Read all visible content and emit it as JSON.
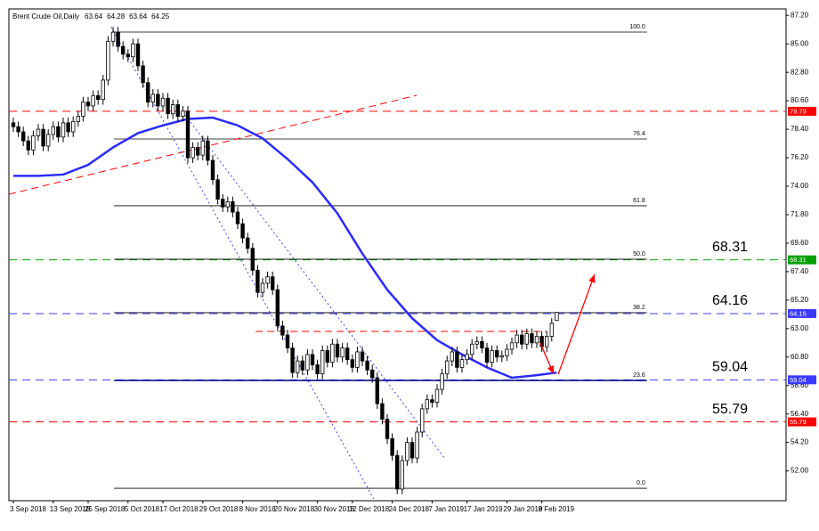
{
  "chart_data": {
    "type": "candlestick",
    "title": "Brent Crude Oil,Daily",
    "categories": [
      "3 Sep 2018",
      null,
      null,
      null,
      null,
      null,
      null,
      null,
      "13 Sep 2018",
      null,
      null,
      null,
      null,
      null,
      null,
      "25 Sep 2018",
      null,
      null,
      null,
      null,
      null,
      null,
      null,
      "5 Oct 2018",
      null,
      null,
      null,
      null,
      null,
      null,
      "17 Oct 2018",
      null,
      null,
      null,
      null,
      null,
      null,
      null,
      "29 Oct 2018",
      null,
      null,
      null,
      null,
      null,
      null,
      null,
      "8 Nov 2018",
      null,
      null,
      null,
      null,
      null,
      null,
      "20 Nov 2018",
      null,
      null,
      null,
      null,
      null,
      null,
      null,
      "30 Nov 2018",
      null,
      null,
      null,
      null,
      null,
      null,
      "12 Dec 2018",
      null,
      null,
      null,
      null,
      null,
      null,
      null,
      "24 Dec 2018",
      null,
      null,
      null,
      null,
      null,
      null,
      null,
      "7 Jan 2019",
      null,
      null,
      null,
      null,
      null,
      null,
      "17 Jan 2019",
      null,
      null,
      null,
      null,
      null,
      null,
      null,
      "29 Jan 2019",
      null,
      null,
      null,
      null,
      null,
      null,
      "8 Feb 2019",
      null,
      null,
      null
    ],
    "open": [
      78.9,
      78.6,
      78.2,
      77.5,
      76.8,
      77.9,
      78.4,
      77.1,
      78.0,
      78.6,
      77.8,
      78.9,
      78.2,
      79.0,
      79.4,
      80.5,
      80.2,
      81.0,
      80.7,
      82.2,
      85.2,
      85.9,
      84.8,
      84.2,
      84.0,
      85.0,
      83.3,
      82.0,
      80.5,
      81.1,
      80.2,
      80.8,
      79.6,
      80.3,
      79.4,
      79.8,
      76.2,
      77.0,
      76.4,
      77.5,
      76.0,
      74.5,
      73.0,
      72.4,
      72.8,
      72.0,
      71.1,
      70.0,
      69.2,
      67.5,
      65.8,
      66.5,
      67.0,
      66.0,
      63.2,
      62.5,
      61.5,
      59.6,
      60.5,
      59.8,
      61.0,
      60.2,
      59.5,
      61.3,
      60.4,
      61.8,
      60.8,
      61.5,
      60.6,
      60.0,
      61.2,
      60.5,
      59.8,
      59.2,
      57.2,
      56.0,
      54.5,
      53.2,
      50.6,
      52.8,
      54.2,
      53.0,
      55.0,
      56.8,
      57.5,
      57.3,
      58.3,
      59.5,
      60.5,
      61.2,
      60.0,
      60.6,
      61.0,
      61.8,
      62.0,
      61.5,
      60.4,
      61.3,
      60.8,
      60.9,
      61.4,
      61.9,
      62.5,
      61.8,
      62.6,
      61.9,
      62.4,
      61.6,
      62.4,
      63.64
    ],
    "high": [
      79.3,
      79.0,
      78.6,
      77.9,
      78.3,
      78.8,
      78.8,
      78.4,
      79.0,
      79.0,
      79.3,
      79.3,
      79.4,
      79.8,
      80.9,
      80.9,
      81.4,
      81.4,
      82.6,
      85.6,
      86.3,
      86.3,
      85.2,
      84.6,
      85.4,
      85.4,
      83.7,
      82.4,
      81.5,
      81.5,
      81.2,
      81.2,
      80.7,
      80.7,
      80.2,
      80.2,
      77.4,
      77.4,
      77.9,
      77.9,
      76.4,
      74.9,
      73.4,
      73.2,
      73.2,
      72.4,
      71.5,
      70.4,
      69.6,
      67.9,
      66.9,
      67.4,
      67.4,
      66.4,
      63.6,
      62.9,
      61.9,
      60.9,
      60.9,
      61.4,
      61.4,
      60.6,
      61.7,
      61.7,
      62.2,
      62.2,
      61.9,
      61.9,
      61.0,
      61.6,
      61.6,
      60.9,
      60.2,
      59.6,
      57.6,
      56.4,
      54.9,
      53.6,
      53.2,
      54.6,
      54.6,
      55.4,
      57.2,
      57.9,
      57.9,
      58.7,
      59.9,
      60.9,
      61.6,
      61.6,
      61.0,
      61.4,
      62.2,
      62.4,
      62.4,
      61.9,
      61.7,
      61.7,
      61.3,
      61.8,
      62.3,
      62.9,
      62.9,
      63.0,
      63.0,
      62.8,
      62.8,
      62.8,
      63.8,
      64.28
    ],
    "low": [
      78.2,
      77.8,
      77.1,
      76.4,
      76.4,
      77.5,
      76.7,
      76.7,
      77.6,
      77.4,
      77.4,
      77.8,
      77.8,
      78.6,
      79.0,
      79.8,
      79.8,
      80.3,
      80.3,
      81.8,
      84.8,
      84.4,
      83.8,
      83.6,
      83.6,
      82.9,
      81.6,
      80.1,
      80.1,
      79.8,
      79.8,
      79.2,
      79.2,
      79.0,
      79.0,
      75.8,
      75.8,
      76.0,
      76.0,
      75.6,
      74.1,
      72.6,
      72.0,
      72.0,
      71.6,
      70.7,
      69.6,
      68.8,
      67.1,
      65.4,
      65.4,
      66.1,
      65.6,
      62.8,
      62.1,
      61.1,
      59.2,
      59.2,
      59.4,
      59.4,
      59.8,
      59.1,
      59.1,
      60.0,
      60.0,
      60.4,
      60.4,
      60.2,
      59.6,
      59.6,
      60.1,
      59.4,
      58.8,
      56.8,
      55.6,
      54.1,
      52.8,
      50.2,
      50.2,
      52.4,
      52.6,
      52.6,
      54.6,
      56.4,
      56.9,
      56.9,
      57.9,
      59.1,
      60.1,
      59.6,
      59.6,
      60.2,
      60.6,
      61.4,
      61.1,
      60.0,
      60.0,
      60.4,
      60.4,
      60.5,
      61.0,
      61.5,
      61.4,
      61.4,
      61.5,
      61.5,
      61.2,
      61.2,
      62.0,
      63.64
    ],
    "close": [
      78.6,
      78.2,
      77.5,
      76.8,
      77.9,
      78.4,
      77.1,
      78.0,
      78.6,
      77.8,
      78.9,
      78.2,
      79.0,
      79.4,
      80.5,
      80.2,
      81.0,
      80.7,
      82.2,
      85.2,
      85.9,
      84.8,
      84.2,
      84.0,
      85.0,
      83.3,
      82.0,
      80.5,
      81.1,
      80.2,
      80.8,
      79.6,
      80.3,
      79.4,
      79.8,
      76.2,
      77.0,
      76.4,
      77.5,
      76.0,
      74.5,
      73.0,
      72.4,
      72.8,
      72.0,
      71.1,
      70.0,
      69.2,
      67.5,
      65.8,
      66.5,
      67.0,
      66.0,
      63.2,
      62.5,
      61.5,
      59.6,
      60.5,
      59.8,
      61.0,
      60.2,
      59.5,
      61.3,
      60.4,
      61.8,
      60.8,
      61.5,
      60.6,
      60.0,
      61.2,
      60.5,
      59.8,
      59.2,
      57.2,
      56.0,
      54.5,
      53.2,
      50.6,
      52.8,
      54.2,
      53.0,
      55.0,
      56.8,
      57.5,
      57.3,
      58.3,
      59.5,
      60.5,
      61.2,
      60.0,
      60.6,
      61.0,
      61.8,
      62.0,
      61.5,
      60.4,
      61.3,
      60.8,
      60.9,
      61.4,
      61.9,
      62.5,
      61.8,
      62.6,
      61.9,
      62.4,
      61.6,
      62.4,
      63.4,
      64.25
    ],
    "ylim": [
      49.7,
      87.7
    ],
    "yticks": [
      {
        "value": 87.2,
        "label": "87.20"
      },
      {
        "value": 85,
        "label": "85.00"
      },
      {
        "value": 82.8,
        "label": "82.80"
      },
      {
        "value": 80.6,
        "label": "80.60"
      },
      {
        "value": 78.4,
        "label": "78.40"
      },
      {
        "value": 76.2,
        "label": "76.20"
      },
      {
        "value": 74,
        "label": "74.00"
      },
      {
        "value": 71.8,
        "label": "71.80"
      },
      {
        "value": 69.6,
        "label": "69.60"
      },
      {
        "value": 67.4,
        "label": "67.40"
      },
      {
        "value": 65.2,
        "label": "65.20"
      },
      {
        "value": 63,
        "label": "63.00"
      },
      {
        "value": 60.8,
        "label": "60.80"
      },
      {
        "value": 58.6,
        "label": "58.60"
      },
      {
        "value": 56.4,
        "label": "56.40"
      },
      {
        "value": 54.2,
        "label": "54.20"
      },
      {
        "value": 52,
        "label": "52.00"
      }
    ],
    "moving_average": {
      "color": "#2a2aff",
      "x": [
        0,
        5,
        10,
        15,
        20,
        25,
        30,
        35,
        40,
        45,
        50,
        55,
        60,
        65,
        70,
        75,
        80,
        85,
        90,
        95,
        100,
        105,
        109
      ],
      "values": [
        74.8,
        74.8,
        74.9,
        75.65,
        77.0,
        78.1,
        78.7,
        79.2,
        79.3,
        78.7,
        77.7,
        76.1,
        74.3,
        71.9,
        68.8,
        66.0,
        63.8,
        62.1,
        61.0,
        60.0,
        59.2,
        59.4,
        59.6
      ]
    },
    "levels": [
      {
        "value": 79.79,
        "color": "#ff0000",
        "callout": false
      },
      {
        "value": 68.31,
        "color": "#00a000",
        "callout": true
      },
      {
        "value": 64.16,
        "color": "#3a3aff",
        "callout": true
      },
      {
        "value": 59.04,
        "color": "#3a3aff",
        "callout": true
      },
      {
        "value": 55.79,
        "color": "#ff0000",
        "callout": true
      }
    ],
    "fib_range_x": [
      20.2,
      127.1
    ],
    "fib_levels": [
      {
        "label": "100.0",
        "value": 85.91
      },
      {
        "label": "76.4",
        "value": 77.65
      },
      {
        "label": "61.8",
        "value": 72.49
      },
      {
        "label": "50.0",
        "value": 68.36
      },
      {
        "label": "38.2",
        "value": 64.23
      },
      {
        "label": "23.6",
        "value": 58.99
      },
      {
        "label": "0.0",
        "value": 50.66
      }
    ],
    "drawings": [
      {
        "x": [
          -0.9,
          80.9
        ],
        "y": [
          73.38,
          81.02
        ],
        "color": "#ff0000",
        "style": "dashed"
      },
      {
        "x": [
          19.6,
          72.3
        ],
        "y": [
          86.32,
          49.84
        ],
        "color": "#4040ff",
        "style": "dotted"
      },
      {
        "x": [
          33.9,
          86.6
        ],
        "y": [
          79.78,
          52.94
        ],
        "color": "#4040ff",
        "style": "dotted"
      },
      {
        "x": [
          48.6,
          107
        ],
        "y": [
          62.78,
          62.78
        ],
        "color": "#ff0000",
        "style": "dashed"
      },
      {
        "x": [
          105.7,
          108.4
        ],
        "y": [
          61.88,
          59.48
        ],
        "color": "#ff0000",
        "style": "arrow"
      },
      {
        "x": [
          109.3,
          116.6
        ],
        "y": [
          59.48,
          67.19
        ],
        "color": "#ff0000",
        "style": "arrow"
      }
    ]
  }
}
